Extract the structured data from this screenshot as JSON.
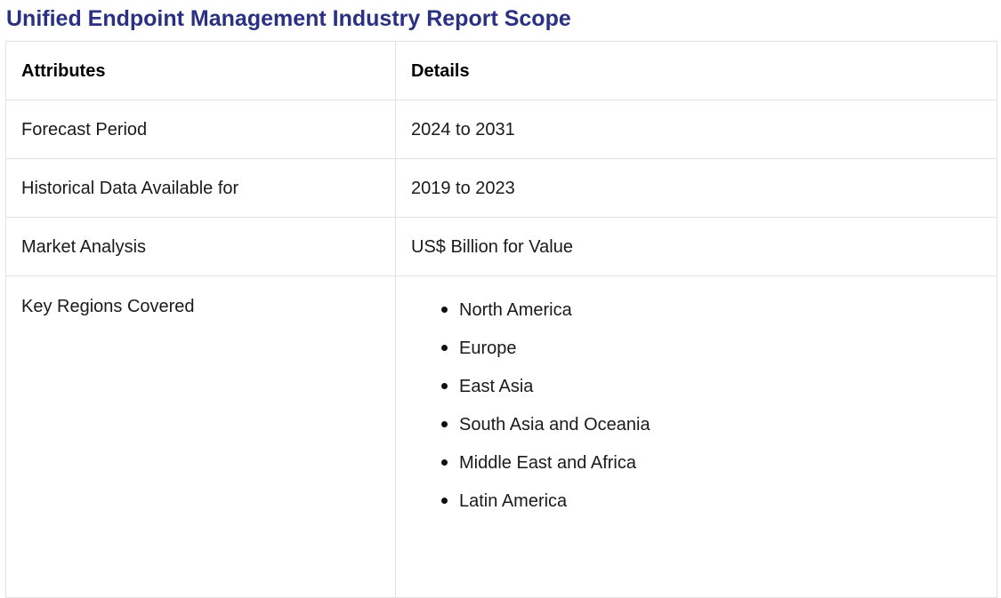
{
  "title": "Unified Endpoint Management Industry Report Scope",
  "colors": {
    "title": "#2b3182",
    "border": "#e2e2e2"
  },
  "table": {
    "headers": [
      "Attributes",
      "Details"
    ],
    "rows": [
      {
        "attribute": "Forecast Period",
        "detail": "2024 to 2031"
      },
      {
        "attribute": "Historical Data Available for",
        "detail": "2019 to 2023"
      },
      {
        "attribute": "Market Analysis",
        "detail": "US$ Billion for Value"
      }
    ],
    "regions": {
      "attribute": "Key Regions Covered",
      "items": [
        "North America",
        "Europe",
        "East Asia",
        "South Asia and Oceania",
        "Middle East and Africa",
        "Latin America"
      ]
    }
  }
}
